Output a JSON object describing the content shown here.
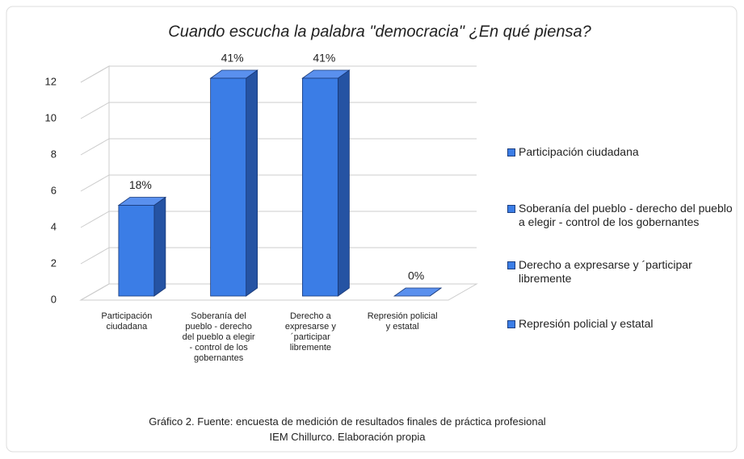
{
  "chart_data": {
    "type": "bar3d",
    "title": "Cuando escucha la palabra \"democracia\" ¿En qué piensa?",
    "categories": [
      "Participación ciudadana",
      "Soberanía del pueblo - derecho del pueblo a elegir - control de los gobernantes",
      "Derecho a expresarse y ´participar libremente",
      "Represión policial y estatal"
    ],
    "values": [
      5,
      12,
      12,
      0
    ],
    "percent_labels": [
      "18%",
      "41%",
      "41%",
      "0%"
    ],
    "color": "#3b7de6",
    "ylim": [
      0,
      12
    ],
    "yticks": [
      0,
      2,
      4,
      6,
      8,
      10,
      12
    ],
    "grid": true,
    "legend": "right",
    "caption": [
      "Gráfico 2. Fuente:  encuesta de medición de resultados finales de práctica profesional",
      "IEM Chillurco. Elaboración propia"
    ]
  }
}
